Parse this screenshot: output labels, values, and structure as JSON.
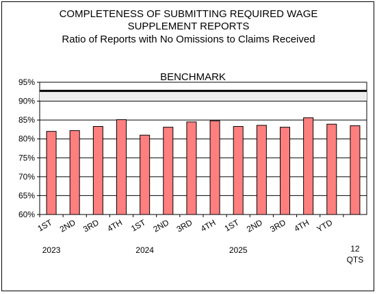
{
  "chart_data": {
    "type": "bar",
    "title_line1": "COMPLETENESS OF SUBMITTING REQUIRED WAGE",
    "title_line2": "SUPPLEMENT REPORTS",
    "subtitle": "Ratio of Reports with No Omissions to Claims Received",
    "categories": [
      "1ST",
      "2ND",
      "3RD",
      "4TH",
      "1ST",
      "2ND",
      "3RD",
      "4TH",
      "1ST",
      "2ND",
      "3RD",
      "4TH",
      "YTD",
      ""
    ],
    "year_labels": [
      {
        "label": "2023",
        "category_index": 0
      },
      {
        "label": "2024",
        "category_index": 4
      },
      {
        "label": "2025",
        "category_index": 8
      }
    ],
    "end_label_line1": "12",
    "end_label_line2": "QTS",
    "values": [
      82.0,
      82.2,
      83.3,
      85.1,
      81.0,
      83.1,
      84.5,
      84.8,
      83.3,
      83.6,
      83.1,
      85.6,
      83.9,
      83.5
    ],
    "benchmark": {
      "label": "BENCHMARK",
      "value": 92.7
    },
    "ylim": [
      60,
      95
    ],
    "yticks": [
      60,
      65,
      70,
      75,
      80,
      85,
      90,
      95
    ],
    "ytick_suffix": "%",
    "grid": true,
    "bar_color": "#ff7f7f",
    "bar_edge_color": "#000000"
  }
}
